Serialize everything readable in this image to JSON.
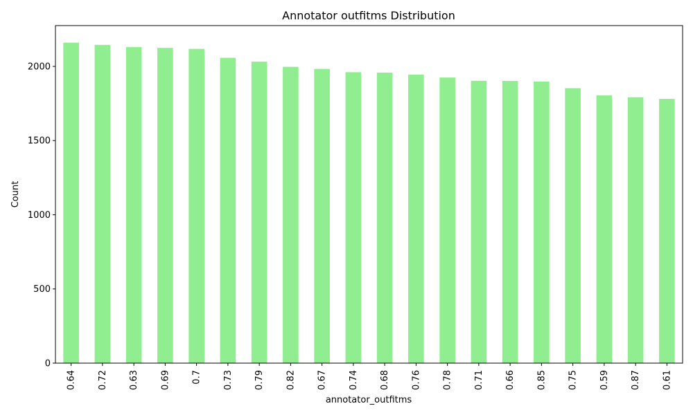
{
  "chart_data": {
    "type": "bar",
    "title": "Annotator outfitms Distribution",
    "xlabel": "annotator_outfitms",
    "ylabel": "Count",
    "categories": [
      "0.64",
      "0.72",
      "0.63",
      "0.69",
      "0.7",
      "0.73",
      "0.79",
      "0.82",
      "0.67",
      "0.74",
      "0.68",
      "0.76",
      "0.78",
      "0.71",
      "0.66",
      "0.85",
      "0.75",
      "0.59",
      "0.87",
      "0.61"
    ],
    "values": [
      2160,
      2145,
      2130,
      2125,
      2118,
      2058,
      2032,
      1997,
      1983,
      1961,
      1958,
      1945,
      1925,
      1903,
      1902,
      1898,
      1853,
      1805,
      1792,
      1781
    ],
    "ylim": [
      0,
      2275
    ],
    "yticks": [
      0,
      500,
      1000,
      1500,
      2000
    ],
    "grid": false,
    "legend": "none",
    "bar_color": "#90ee90"
  }
}
